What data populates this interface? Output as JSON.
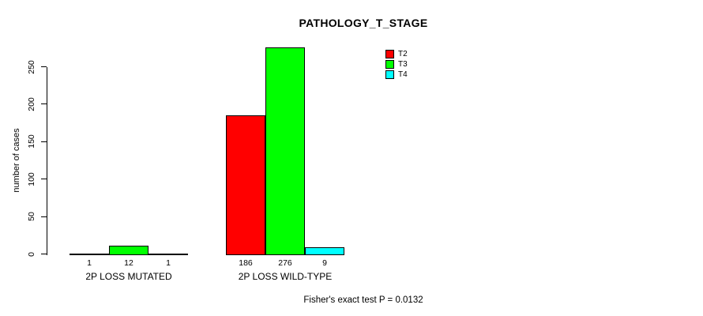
{
  "chart_data": {
    "type": "bar",
    "title": "PATHOLOGY_T_STAGE",
    "ylabel": "number of cases",
    "xlabel": "",
    "categories": [
      "2P LOSS MUTATED",
      "2P LOSS WILD-TYPE"
    ],
    "series": [
      {
        "name": "T2",
        "color": "#ff0000",
        "values": [
          1,
          186
        ]
      },
      {
        "name": "T3",
        "color": "#00ff00",
        "values": [
          12,
          276
        ]
      },
      {
        "name": "T4",
        "color": "#00ffff",
        "values": [
          1,
          9
        ]
      }
    ],
    "bar_value_labels_shown": true,
    "y_ticks": [
      0,
      50,
      100,
      150,
      200,
      250
    ],
    "ylim": [
      0,
      290
    ],
    "grid": false,
    "legend_position": "top-right-inside",
    "annotation": "Fisher's exact test P = 0.0132",
    "colors": {
      "bar_border": "#000000",
      "text": "#000000",
      "background": "#ffffff"
    }
  }
}
